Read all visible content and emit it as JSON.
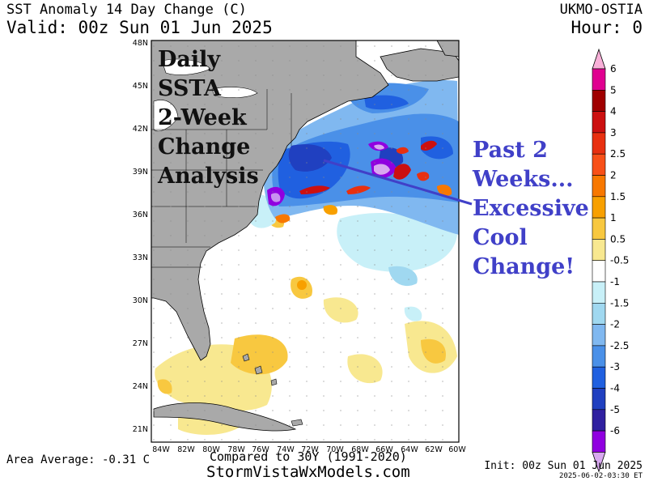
{
  "header": {
    "title": "SST Anomaly 14 Day Change (C)",
    "valid": "Valid: 00z Sun 01 Jun 2025",
    "model": "UKMO-OSTIA",
    "hour": "Hour: 0"
  },
  "map": {
    "lat_labels": [
      "48N",
      "45N",
      "42N",
      "39N",
      "36N",
      "33N",
      "30N",
      "27N",
      "24N",
      "21N"
    ],
    "lon_labels": [
      "84W",
      "82W",
      "80W",
      "78W",
      "76W",
      "74W",
      "72W",
      "70W",
      "68W",
      "66W",
      "64W",
      "62W",
      "60W"
    ],
    "land_color": "#a9a9a9",
    "ocean_color": "#ffffff"
  },
  "colorbar": {
    "labels": [
      "6",
      "5",
      "4",
      "3",
      "2.5",
      "2",
      "1.5",
      "1",
      "0.5",
      "-0.5",
      "-1",
      "-1.5",
      "-2",
      "-2.5",
      "-3",
      "-4",
      "-5",
      "-6"
    ],
    "colors": [
      "#e00090",
      "#a00000",
      "#cc1010",
      "#e83010",
      "#f85018",
      "#f87800",
      "#f8a000",
      "#f8c840",
      "#f8e890",
      "#ffffff",
      "#c8f0f8",
      "#a0d8f0",
      "#80b8f0",
      "#4a90e8",
      "#2060e0",
      "#2040c0",
      "#3020a0",
      "#9000e0"
    ],
    "top_tip_color": "#f8b0d8",
    "bottom_tip_color": "#d8a8f0"
  },
  "annotations": {
    "left": [
      "Daily",
      "SSTA",
      "2-Week",
      "Change",
      "Analysis"
    ],
    "right": [
      "Past 2",
      "Weeks...",
      "Excessive",
      "Cool",
      "Change!"
    ],
    "right_color": "#4040c8"
  },
  "footer": {
    "area_average": "Area Average: -0.31 C",
    "compared": "Compared to 30Y (1991-2020)",
    "site": "StormVistaWxModels.com",
    "init": "Init: 00z Sun 01 Jun 2025",
    "stamp": "2025-06-02-03:30 ET"
  }
}
